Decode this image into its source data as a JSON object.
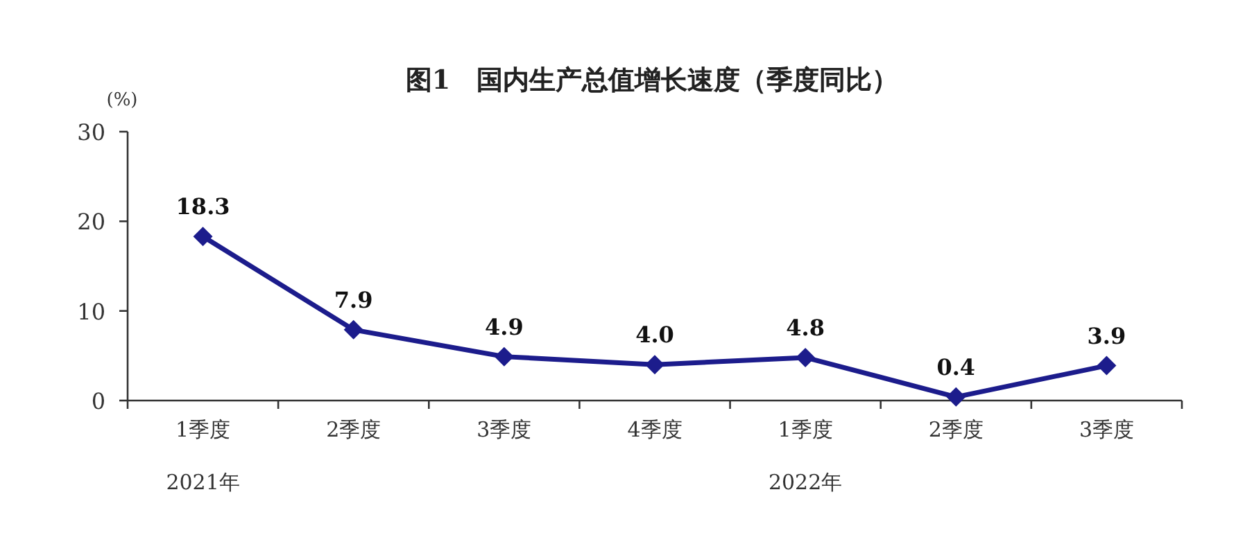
{
  "chart_data": {
    "type": "line",
    "title": "图1　国内生产总值增长速度（季度同比）",
    "ylabel": "(%)",
    "categories": [
      "1季度\n2021年",
      "2季度",
      "3季度",
      "4季度",
      "1季度\n2022年",
      "2季度",
      "3季度"
    ],
    "series": [
      {
        "color": "#1c1c8c",
        "values": [
          18.3,
          7.9,
          4.9,
          4.0,
          4.8,
          0.4,
          3.9
        ]
      }
    ],
    "value_labels": [
      "18.3",
      "7.9",
      "4.9",
      "4.0",
      "4.8",
      "0.4",
      "3.9"
    ],
    "ylim": [
      0,
      30
    ],
    "yticks": [
      0,
      10,
      20,
      30
    ],
    "marker": "diamond",
    "line_style": "solid",
    "grid": false
  }
}
